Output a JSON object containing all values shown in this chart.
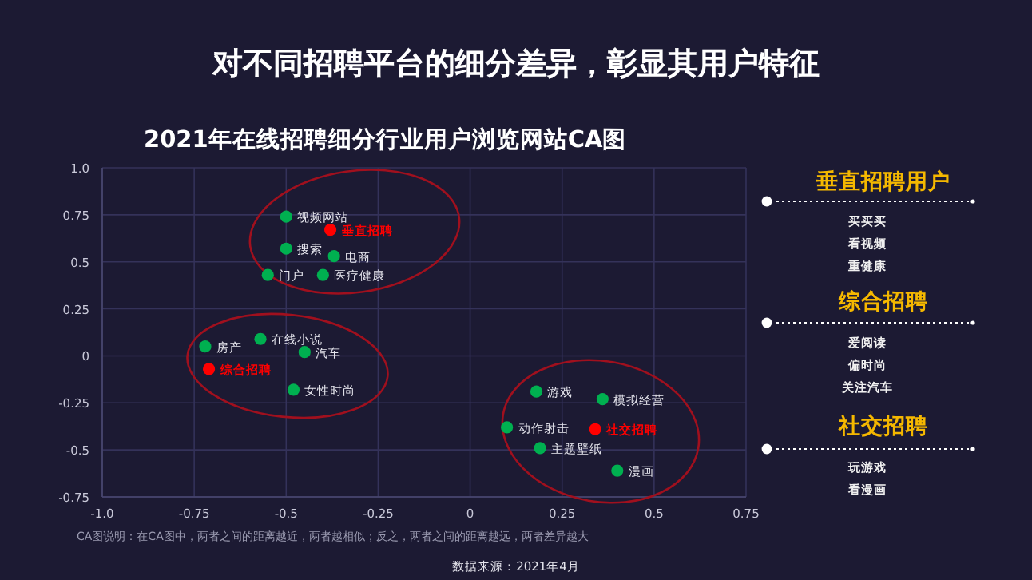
{
  "chart_data": [
    {
      "type": "scatter",
      "title": "对不同招聘平台的细分差异，彰显其用户特征",
      "subtitle": "2021年在线招聘细分行业用户浏览网站CA图",
      "xlim": [
        -1,
        0.75
      ],
      "ylim": [
        -0.75,
        1
      ],
      "xticks": [
        {
          "value": -1,
          "label": "-1.0"
        },
        -0.75,
        -0.5,
        -0.25,
        0,
        0.25,
        0.5,
        0.75
      ],
      "yticks": [
        -0.75,
        -0.5,
        -0.25,
        0,
        0.25,
        0.5,
        0.75,
        {
          "value": 1,
          "label": "1.0"
        }
      ],
      "grid": true,
      "marker": "circle",
      "series": [
        {
          "name": "视频网站",
          "color": "#00b050",
          "x": [
            -0.5
          ],
          "values": [
            0.74
          ]
        },
        {
          "name": "垂直招聘",
          "color": "#ff0000",
          "x": [
            -0.38
          ],
          "values": [
            0.67
          ]
        },
        {
          "name": "搜索",
          "color": "#00b050",
          "x": [
            -0.5
          ],
          "values": [
            0.57
          ]
        },
        {
          "name": "电商",
          "color": "#00b050",
          "x": [
            -0.37
          ],
          "values": [
            0.53
          ]
        },
        {
          "name": "门户",
          "color": "#00b050",
          "x": [
            -0.55
          ],
          "values": [
            0.43
          ]
        },
        {
          "name": "医疗健康",
          "color": "#00b050",
          "x": [
            -0.4
          ],
          "values": [
            0.43
          ]
        },
        {
          "name": "房产",
          "color": "#00b050",
          "x": [
            -0.72
          ],
          "values": [
            0.05
          ]
        },
        {
          "name": "在线小说",
          "color": "#00b050",
          "x": [
            -0.57
          ],
          "values": [
            0.09
          ]
        },
        {
          "name": "汽车",
          "color": "#00b050",
          "x": [
            -0.45
          ],
          "values": [
            0.02
          ]
        },
        {
          "name": "综合招聘",
          "color": "#ff0000",
          "x": [
            -0.71
          ],
          "values": [
            -0.07
          ]
        },
        {
          "name": "女性时尚",
          "color": "#00b050",
          "x": [
            -0.48
          ],
          "values": [
            -0.18
          ]
        },
        {
          "name": "游戏",
          "color": "#00b050",
          "x": [
            0.18
          ],
          "values": [
            -0.19
          ]
        },
        {
          "name": "模拟经营",
          "color": "#00b050",
          "x": [
            0.36
          ],
          "values": [
            -0.23
          ]
        },
        {
          "name": "动作射击",
          "color": "#00b050",
          "x": [
            0.1
          ],
          "values": [
            -0.38
          ]
        },
        {
          "name": "社交招聘",
          "color": "#ff0000",
          "x": [
            0.34
          ],
          "values": [
            -0.39
          ]
        },
        {
          "name": "主题壁纸",
          "color": "#00b050",
          "x": [
            0.19
          ],
          "values": [
            -0.49
          ]
        },
        {
          "name": "漫画",
          "color": "#00b050",
          "x": [
            0.4
          ],
          "values": [
            -0.61
          ]
        }
      ],
      "annotations": [
        "CA图说明：在CA图中，两者之间的距离越近，两者越相似；反之，两者之间的距离越远，两者差异越大",
        "数据来源：2021年4月"
      ]
    },
    {
      "type": "other",
      "title": "垂直招聘用户",
      "annotations": [
        "买买买",
        "看视频",
        "重健康"
      ]
    },
    {
      "type": "other",
      "title": "综合招聘",
      "annotations": [
        "爱阅读",
        "偏时尚",
        "关注汽车"
      ]
    },
    {
      "type": "other",
      "title": "社交招聘",
      "annotations": [
        "玩游戏",
        "看漫画"
      ]
    }
  ]
}
